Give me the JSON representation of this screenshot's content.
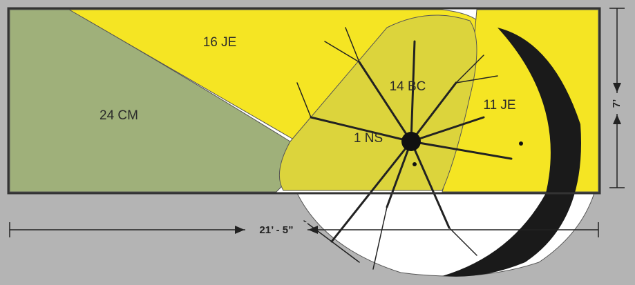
{
  "beds": [
    {
      "label": "16 JE"
    },
    {
      "label": "14 BC"
    },
    {
      "label": "24 CM"
    },
    {
      "label": "1 NS"
    },
    {
      "label": "11 JE"
    }
  ],
  "dimensions": {
    "width": "21’ - 5”",
    "height": "7’"
  }
}
